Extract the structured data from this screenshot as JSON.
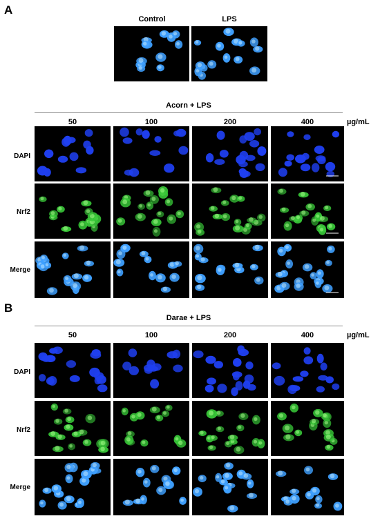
{
  "panel_a": {
    "letter": "A",
    "top_labels": [
      "Control",
      "LPS"
    ],
    "group_title": "Acorn + LPS",
    "concentrations": [
      "50",
      "100",
      "200",
      "400"
    ],
    "unit": "µg/mL",
    "row_labels": [
      "DAPI",
      "Nrf2",
      "Merge"
    ]
  },
  "panel_b": {
    "letter": "B",
    "group_title": "Darae + LPS",
    "concentrations": [
      "50",
      "100",
      "200",
      "400"
    ],
    "unit": "µg/mL",
    "row_labels": [
      "DAPI",
      "Nrf2",
      "Merge"
    ]
  },
  "colors": {
    "background": "#000000",
    "dapi": "#1f3ff0",
    "nrf2": "#38c838",
    "merge": "#3fa0ff"
  }
}
